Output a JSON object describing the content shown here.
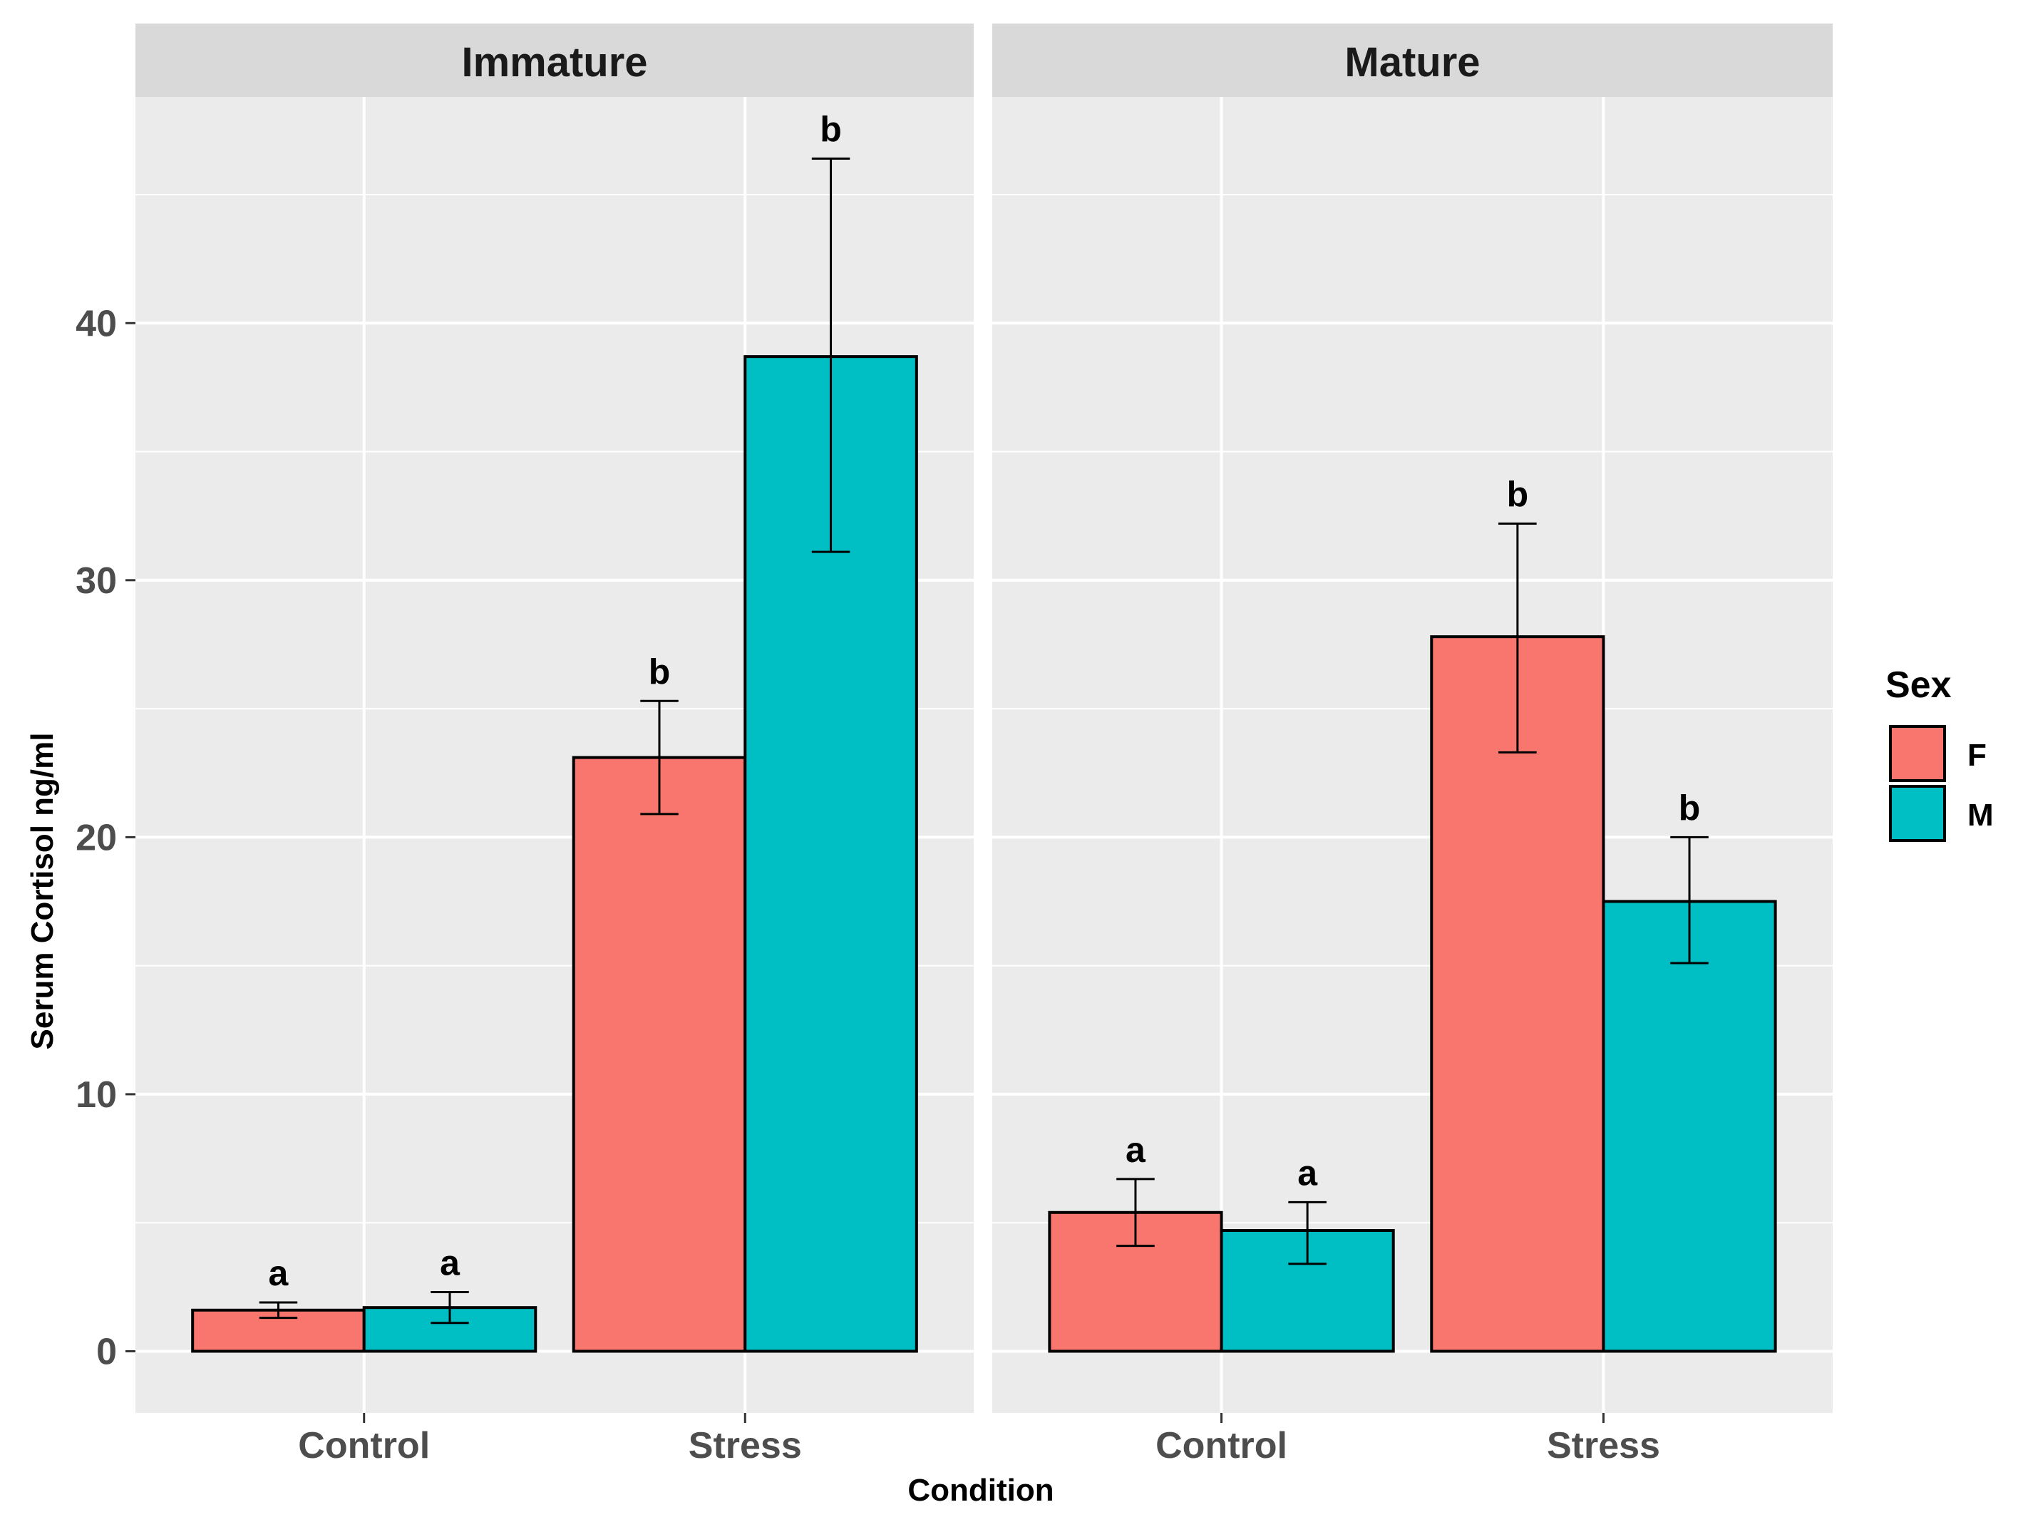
{
  "chart_data": {
    "type": "bar",
    "title": "",
    "xlabel": "Condition",
    "ylabel": "Serum Cortisol ng/ml",
    "ylim": [
      -2.4,
      48.8
    ],
    "yticks": [
      0,
      10,
      20,
      30,
      40
    ],
    "y_minor_gridlines": [
      5,
      15,
      25,
      35,
      45
    ],
    "grid": true,
    "categories": [
      "Control",
      "Stress"
    ],
    "legend": {
      "title": "Sex",
      "placement": "right",
      "entries": [
        {
          "name": "F",
          "color": "#F8766D"
        },
        {
          "name": "M",
          "color": "#00BFC4"
        }
      ]
    },
    "panels": [
      {
        "title": "Immature",
        "series": [
          {
            "name": "F",
            "values": [
              1.6,
              23.1
            ],
            "err_low": [
              1.3,
              20.9
            ],
            "err_high": [
              1.9,
              25.3
            ],
            "labels": [
              "a",
              "b"
            ]
          },
          {
            "name": "M",
            "values": [
              1.7,
              38.7
            ],
            "err_low": [
              1.1,
              31.1
            ],
            "err_high": [
              2.3,
              46.4
            ],
            "labels": [
              "a",
              "b"
            ]
          }
        ]
      },
      {
        "title": "Mature",
        "series": [
          {
            "name": "F",
            "values": [
              5.4,
              27.8
            ],
            "err_low": [
              4.1,
              23.3
            ],
            "err_high": [
              6.7,
              32.2
            ],
            "labels": [
              "a",
              "b"
            ]
          },
          {
            "name": "M",
            "values": [
              4.7,
              17.5
            ],
            "err_low": [
              3.4,
              15.1
            ],
            "err_high": [
              5.8,
              20.0
            ],
            "labels": [
              "a",
              "b"
            ]
          }
        ]
      }
    ]
  },
  "colors": {
    "panel_background": "#EBEBEB",
    "strip_background": "#D9D9D9",
    "gridline": "#FFFFFF",
    "outline": "#000000"
  }
}
